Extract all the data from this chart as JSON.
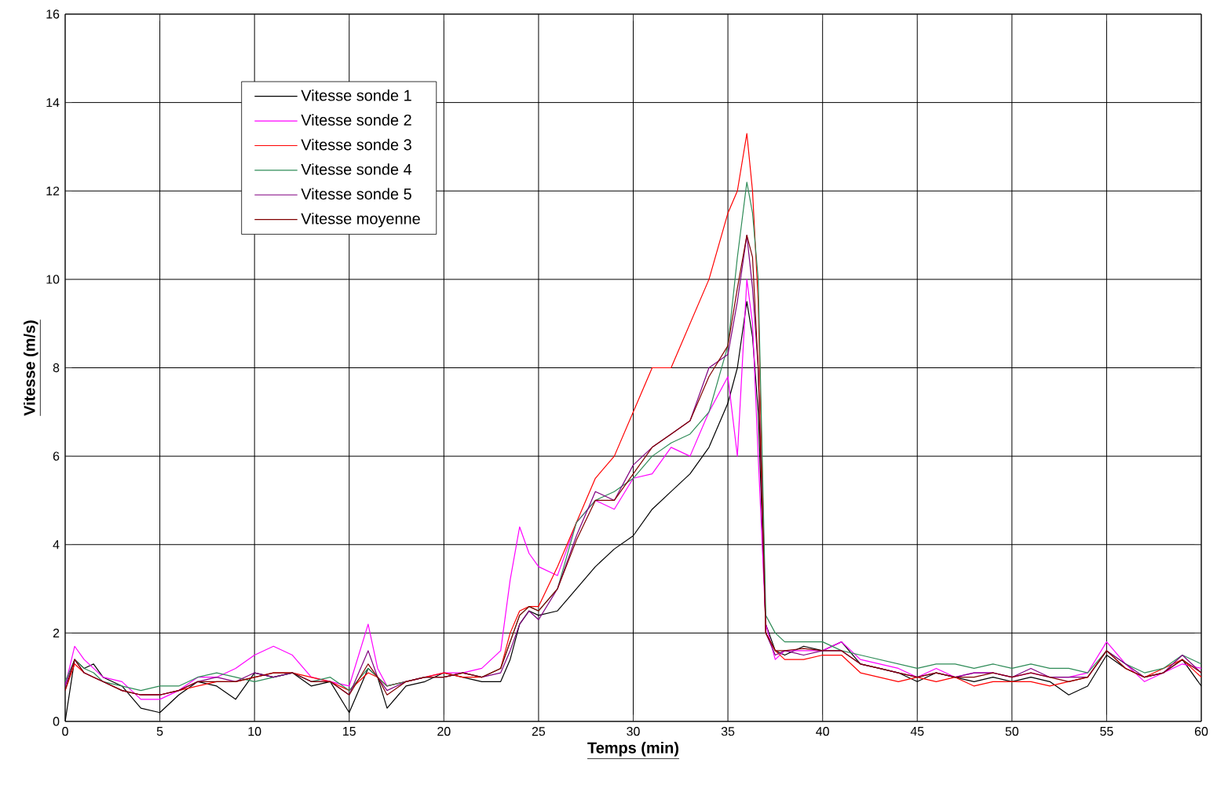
{
  "chart_data": {
    "type": "line",
    "xlabel": "Temps (min)",
    "ylabel": "Vitesse (m/s)",
    "x": [
      0,
      0.5,
      1,
      1.5,
      2,
      3,
      4,
      5,
      6,
      7,
      8,
      9,
      10,
      11,
      12,
      13,
      14,
      15,
      16,
      16.5,
      17,
      18,
      19,
      20,
      21,
      22,
      23,
      23.5,
      24,
      24.5,
      25,
      26,
      27,
      28,
      29,
      30,
      31,
      32,
      33,
      34,
      35,
      35.5,
      36,
      36.3,
      36.6,
      37,
      37.5,
      38,
      39,
      40,
      41,
      42,
      43,
      44,
      45,
      46,
      47,
      48,
      49,
      50,
      51,
      52,
      53,
      54,
      55,
      56,
      57,
      58,
      59,
      60
    ],
    "series": [
      {
        "name": "Vitesse sonde 1",
        "color": "#000000",
        "values": [
          0,
          1.4,
          1.2,
          1.3,
          1.0,
          0.8,
          0.3,
          0.2,
          0.6,
          0.9,
          0.8,
          0.5,
          1.1,
          1.0,
          1.1,
          0.8,
          0.9,
          0.2,
          1.2,
          1.0,
          0.3,
          0.8,
          0.9,
          1.1,
          1.0,
          0.9,
          0.9,
          1.4,
          2.2,
          2.5,
          2.4,
          2.5,
          3.0,
          3.5,
          3.9,
          4.2,
          4.8,
          5.2,
          5.6,
          6.2,
          7.2,
          8.0,
          9.5,
          8.7,
          7.0,
          2.2,
          1.6,
          1.5,
          1.7,
          1.6,
          1.8,
          1.3,
          1.2,
          1.1,
          0.9,
          1.1,
          1.0,
          0.9,
          1.0,
          0.9,
          1.0,
          0.9,
          0.6,
          0.8,
          1.5,
          1.2,
          1.0,
          1.1,
          1.4,
          0.8
        ]
      },
      {
        "name": "Vitesse sonde 2",
        "color": "#ff00ff",
        "values": [
          0.8,
          1.7,
          1.4,
          1.2,
          1.0,
          0.9,
          0.5,
          0.5,
          0.7,
          1.0,
          1.0,
          1.2,
          1.5,
          1.7,
          1.5,
          1.0,
          0.9,
          0.8,
          2.2,
          1.2,
          0.8,
          0.9,
          1.0,
          1.1,
          1.1,
          1.2,
          1.6,
          3.2,
          4.4,
          3.8,
          3.5,
          3.3,
          4.5,
          5.0,
          4.8,
          5.5,
          5.6,
          6.2,
          6.0,
          7.0,
          7.8,
          6.0,
          10.0,
          9.0,
          6.0,
          2.2,
          1.4,
          1.6,
          1.6,
          1.6,
          1.8,
          1.4,
          1.3,
          1.2,
          1.0,
          1.2,
          1.0,
          1.1,
          1.1,
          1.0,
          1.1,
          1.0,
          1.0,
          1.1,
          1.8,
          1.3,
          0.9,
          1.1,
          1.3,
          1.2
        ]
      },
      {
        "name": "Vitesse sonde 3",
        "color": "#ff0000",
        "values": [
          0.7,
          1.3,
          1.1,
          1.0,
          0.9,
          0.7,
          0.6,
          0.6,
          0.7,
          0.8,
          0.9,
          0.9,
          1.0,
          1.1,
          1.1,
          1.0,
          0.9,
          0.7,
          1.1,
          1.0,
          0.8,
          0.9,
          1.0,
          1.1,
          1.0,
          1.0,
          1.2,
          2.0,
          2.5,
          2.6,
          2.6,
          3.5,
          4.5,
          5.5,
          6.0,
          7.0,
          8.0,
          8.0,
          9.0,
          10.0,
          11.5,
          12.0,
          13.3,
          12.0,
          9.5,
          2.0,
          1.6,
          1.4,
          1.4,
          1.5,
          1.5,
          1.1,
          1.0,
          0.9,
          1.0,
          0.9,
          1.0,
          0.8,
          0.9,
          0.9,
          0.9,
          0.8,
          0.9,
          1.0,
          1.6,
          1.2,
          1.0,
          1.2,
          1.4,
          1.0
        ]
      },
      {
        "name": "Vitesse sonde 4",
        "color": "#2e8b57",
        "values": [
          0.9,
          1.4,
          1.2,
          1.1,
          0.9,
          0.8,
          0.7,
          0.8,
          0.8,
          1.0,
          1.1,
          1.0,
          0.9,
          1.0,
          1.1,
          0.9,
          1.0,
          0.7,
          1.2,
          1.0,
          0.8,
          0.9,
          1.0,
          1.0,
          1.1,
          1.0,
          1.2,
          1.8,
          2.4,
          2.6,
          2.5,
          3.0,
          4.5,
          5.0,
          5.2,
          5.5,
          6.0,
          6.3,
          6.5,
          7.0,
          8.5,
          10.5,
          12.2,
          11.5,
          10.0,
          2.4,
          2.0,
          1.8,
          1.8,
          1.8,
          1.6,
          1.5,
          1.4,
          1.3,
          1.2,
          1.3,
          1.3,
          1.2,
          1.3,
          1.2,
          1.3,
          1.2,
          1.2,
          1.1,
          1.6,
          1.3,
          1.1,
          1.2,
          1.5,
          1.3
        ]
      },
      {
        "name": "Vitesse sonde 5",
        "color": "#800080",
        "values": [
          0.8,
          1.4,
          1.1,
          1.0,
          0.9,
          0.7,
          0.6,
          0.6,
          0.7,
          0.9,
          1.0,
          0.9,
          1.1,
          1.0,
          1.1,
          0.9,
          0.9,
          0.6,
          1.6,
          1.0,
          0.7,
          0.9,
          1.0,
          1.0,
          1.1,
          1.0,
          1.1,
          1.6,
          2.2,
          2.5,
          2.3,
          3.0,
          4.2,
          5.2,
          5.0,
          5.8,
          6.2,
          6.5,
          6.8,
          8.0,
          8.3,
          9.5,
          11.0,
          9.8,
          8.0,
          2.0,
          1.5,
          1.6,
          1.5,
          1.6,
          1.6,
          1.3,
          1.2,
          1.1,
          1.0,
          1.1,
          1.0,
          1.1,
          1.1,
          1.0,
          1.2,
          1.0,
          1.0,
          1.0,
          1.6,
          1.3,
          1.0,
          1.1,
          1.5,
          1.1
        ]
      },
      {
        "name": "Vitesse moyenne",
        "color": "#800000",
        "values": [
          0.7,
          1.4,
          1.1,
          1.0,
          0.9,
          0.7,
          0.6,
          0.6,
          0.7,
          0.9,
          0.9,
          0.9,
          1.0,
          1.1,
          1.1,
          0.9,
          0.9,
          0.6,
          1.3,
          1.0,
          0.6,
          0.9,
          1.0,
          1.0,
          1.1,
          1.0,
          1.2,
          1.8,
          2.4,
          2.6,
          2.5,
          3.0,
          4.1,
          5.0,
          5.0,
          5.6,
          6.2,
          6.5,
          6.8,
          7.8,
          8.5,
          9.8,
          11.0,
          10.5,
          8.0,
          2.0,
          1.6,
          1.6,
          1.65,
          1.6,
          1.6,
          1.3,
          1.2,
          1.1,
          1.0,
          1.1,
          1.0,
          1.0,
          1.1,
          1.0,
          1.1,
          1.0,
          0.9,
          1.0,
          1.6,
          1.2,
          1.0,
          1.1,
          1.4,
          1.1
        ]
      }
    ],
    "xlim": [
      0,
      60
    ],
    "xticks": [
      0,
      5,
      10,
      15,
      20,
      25,
      30,
      35,
      40,
      45,
      50,
      55,
      60
    ],
    "ylim": [
      0,
      16
    ],
    "yticks": [
      0,
      2,
      4,
      6,
      8,
      10,
      12,
      14,
      16
    ],
    "grid": true,
    "legend": "top left",
    "marker": "none",
    "line_style": "solid"
  }
}
